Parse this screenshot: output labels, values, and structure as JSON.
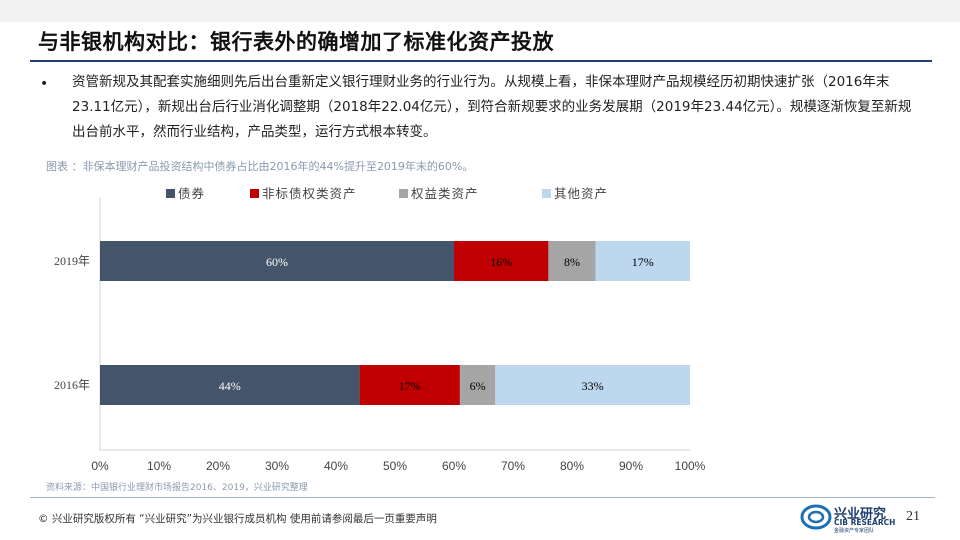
{
  "title": "与非银机构对比：银行表外的确增加了标准化资产投放",
  "body_text": "资管新规及其配套实施细则先后出台重新定义银行理财业务的行业行为。从规模上看，非保本理财产品规模经历初期快速扩张（2016年末23.11亿元），新规出台后行业消化调整期（2018年22.04亿元），到符合新规要求的业务发展期（2019年23.44亿元）。规模逐渐恢复至新规出台前水平，然而行业结构，产品类型，运行方式根本转变。",
  "caption": "图表 ：非保本理财产品投资结构中债券占比由2016年的44%提升至2019年末的60%。",
  "source": "资料来源：中国银行业理财市场报告2016、2019，兴业研究整理",
  "footer": {
    "copyright": "© 兴业研究版权所有    “兴业研究”为兴业银行成员机构  使用前请参阅最后一页重要声明",
    "logo_cn": "兴业研究",
    "logo_en": "CIB RESEARCH",
    "logo_sub": "金融资产专家团队",
    "page_number": "21"
  },
  "colors": {
    "债券": "#44546a",
    "非标债权类资产": "#c00000",
    "权益类资产": "#a5a5a5",
    "其他资产": "#bdd7ee",
    "title_rule": "#1f3f6e"
  },
  "chart_data": {
    "type": "bar",
    "orientation": "horizontal",
    "stacked": true,
    "categories": [
      "2019年",
      "2016年"
    ],
    "series": [
      {
        "name": "债券",
        "values": [
          60,
          44
        ],
        "labels": [
          "60%",
          "44%"
        ],
        "color": "#44546a",
        "label_color": "#ffffff"
      },
      {
        "name": "非标债权类资产",
        "values": [
          16,
          17
        ],
        "labels": [
          "16%",
          "17%"
        ],
        "color": "#c00000",
        "label_color": "#000000"
      },
      {
        "name": "权益类资产",
        "values": [
          8,
          6
        ],
        "labels": [
          "8%",
          "6%"
        ],
        "color": "#a5a5a5",
        "label_color": "#000000"
      },
      {
        "name": "其他资产",
        "values": [
          17,
          33
        ],
        "labels": [
          "17%",
          "33%"
        ],
        "color": "#bdd7ee",
        "label_color": "#000000"
      }
    ],
    "xlim": [
      0,
      100
    ],
    "x_ticks": [
      0,
      10,
      20,
      30,
      40,
      50,
      60,
      70,
      80,
      90,
      100
    ],
    "x_tick_labels": [
      "0%",
      "10%",
      "20%",
      "30%",
      "40%",
      "50%",
      "60%",
      "70%",
      "80%",
      "90%",
      "100%"
    ],
    "grid": false,
    "legend_position": "top",
    "title": "",
    "xlabel": "",
    "ylabel": ""
  }
}
